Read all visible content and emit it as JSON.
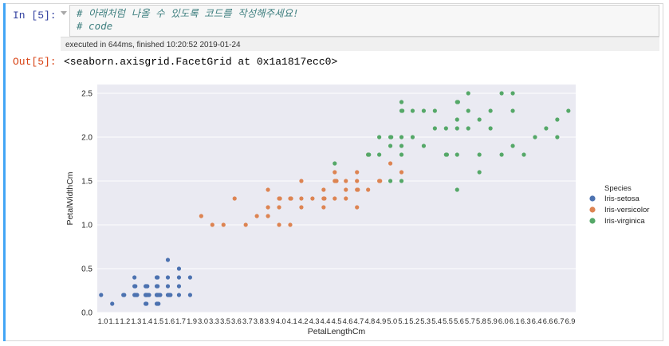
{
  "cell": {
    "in_prompt": "In [5]:",
    "out_prompt": "Out[5]:",
    "code_lines": [
      "# 아래처럼 나올 수 있도록 코드를 작성해주세요!",
      "# code"
    ],
    "exec_info": "executed in 644ms, finished 10:20:52 2019-01-24",
    "output_text": "<seaborn.axisgrid.FacetGrid at 0x1a1817ecc0>"
  },
  "colors": {
    "plot_bg": "#eaeaf2",
    "grid": "#ffffff",
    "accent": "#42a5f5",
    "in_prompt": "#303f9f",
    "out_prompt": "#d84315"
  },
  "chart_data": {
    "type": "scatter",
    "xlabel": "PetalLengthCm",
    "ylabel": "PetalWidthCm",
    "x_categories": [
      "1.0",
      "1.1",
      "1.2",
      "1.3",
      "1.4",
      "1.5",
      "1.6",
      "1.7",
      "1.9",
      "3.0",
      "3.3",
      "3.5",
      "3.6",
      "3.7",
      "3.8",
      "3.9",
      "4.0",
      "4.1",
      "4.2",
      "4.3",
      "4.4",
      "4.5",
      "4.6",
      "4.7",
      "4.8",
      "4.9",
      "5.0",
      "5.1",
      "5.2",
      "5.3",
      "5.4",
      "5.5",
      "5.6",
      "5.7",
      "5.8",
      "5.9",
      "6.0",
      "6.1",
      "6.3",
      "6.4",
      "6.6",
      "6.7",
      "6.9"
    ],
    "yticks": [
      "0.0",
      "0.5",
      "1.0",
      "1.5",
      "2.0",
      "2.5"
    ],
    "ylim": [
      0,
      2.6
    ],
    "grid": true,
    "legend": {
      "title": "Species",
      "placement": "right"
    },
    "series": [
      {
        "name": "Iris-setosa",
        "color": "#4c72b0",
        "points": [
          [
            "1.0",
            0.2
          ],
          [
            "1.1",
            0.1
          ],
          [
            "1.2",
            0.2
          ],
          [
            "1.2",
            0.2
          ],
          [
            "1.3",
            0.2
          ],
          [
            "1.3",
            0.2
          ],
          [
            "1.3",
            0.3
          ],
          [
            "1.3",
            0.4
          ],
          [
            "1.3",
            0.2
          ],
          [
            "1.3",
            0.3
          ],
          [
            "1.3",
            0.2
          ],
          [
            "1.4",
            0.2
          ],
          [
            "1.4",
            0.2
          ],
          [
            "1.4",
            0.2
          ],
          [
            "1.4",
            0.3
          ],
          [
            "1.4",
            0.1
          ],
          [
            "1.4",
            0.2
          ],
          [
            "1.4",
            0.3
          ],
          [
            "1.4",
            0.2
          ],
          [
            "1.4",
            0.1
          ],
          [
            "1.4",
            0.2
          ],
          [
            "1.4",
            0.3
          ],
          [
            "1.4",
            0.2
          ],
          [
            "1.5",
            0.2
          ],
          [
            "1.5",
            0.2
          ],
          [
            "1.5",
            0.1
          ],
          [
            "1.5",
            0.2
          ],
          [
            "1.5",
            0.4
          ],
          [
            "1.5",
            0.3
          ],
          [
            "1.5",
            0.2
          ],
          [
            "1.5",
            0.2
          ],
          [
            "1.5",
            0.1
          ],
          [
            "1.5",
            0.2
          ],
          [
            "1.5",
            0.3
          ],
          [
            "1.5",
            0.1
          ],
          [
            "1.5",
            0.2
          ],
          [
            "1.5",
            0.4
          ],
          [
            "1.6",
            0.2
          ],
          [
            "1.6",
            0.2
          ],
          [
            "1.6",
            0.4
          ],
          [
            "1.6",
            0.2
          ],
          [
            "1.6",
            0.6
          ],
          [
            "1.6",
            0.2
          ],
          [
            "1.6",
            0.3
          ],
          [
            "1.7",
            0.4
          ],
          [
            "1.7",
            0.3
          ],
          [
            "1.7",
            0.2
          ],
          [
            "1.7",
            0.5
          ],
          [
            "1.9",
            0.2
          ],
          [
            "1.9",
            0.4
          ]
        ]
      },
      {
        "name": "Iris-versicolor",
        "color": "#dd8452",
        "points": [
          [
            "3.0",
            1.1
          ],
          [
            "3.3",
            1.0
          ],
          [
            "3.5",
            1.0
          ],
          [
            "3.6",
            1.3
          ],
          [
            "3.7",
            1.0
          ],
          [
            "3.8",
            1.1
          ],
          [
            "3.9",
            1.4
          ],
          [
            "3.9",
            1.1
          ],
          [
            "3.9",
            1.2
          ],
          [
            "4.0",
            1.3
          ],
          [
            "4.0",
            1.0
          ],
          [
            "4.0",
            1.2
          ],
          [
            "4.0",
            1.3
          ],
          [
            "4.1",
            1.0
          ],
          [
            "4.1",
            1.3
          ],
          [
            "4.1",
            1.3
          ],
          [
            "4.2",
            1.3
          ],
          [
            "4.2",
            1.5
          ],
          [
            "4.2",
            1.2
          ],
          [
            "4.3",
            1.3
          ],
          [
            "4.4",
            1.4
          ],
          [
            "4.4",
            1.3
          ],
          [
            "4.4",
            1.2
          ],
          [
            "4.4",
            1.3
          ],
          [
            "4.5",
            1.5
          ],
          [
            "4.5",
            1.3
          ],
          [
            "4.5",
            1.5
          ],
          [
            "4.5",
            1.6
          ],
          [
            "4.5",
            1.5
          ],
          [
            "4.6",
            1.5
          ],
          [
            "4.6",
            1.3
          ],
          [
            "4.6",
            1.4
          ],
          [
            "4.7",
            1.4
          ],
          [
            "4.7",
            1.6
          ],
          [
            "4.7",
            1.2
          ],
          [
            "4.7",
            1.5
          ],
          [
            "4.7",
            1.4
          ],
          [
            "4.8",
            1.8
          ],
          [
            "4.8",
            1.4
          ],
          [
            "4.9",
            1.5
          ],
          [
            "4.9",
            1.5
          ],
          [
            "5.0",
            1.7
          ],
          [
            "5.1",
            1.6
          ]
        ]
      },
      {
        "name": "Iris-virginica",
        "color": "#55a868",
        "points": [
          [
            "4.5",
            1.7
          ],
          [
            "4.8",
            1.8
          ],
          [
            "4.8",
            1.8
          ],
          [
            "4.9",
            1.8
          ],
          [
            "4.9",
            2.0
          ],
          [
            "5.0",
            2.0
          ],
          [
            "5.0",
            1.5
          ],
          [
            "5.0",
            1.9
          ],
          [
            "5.0",
            2.0
          ],
          [
            "5.1",
            2.4
          ],
          [
            "5.1",
            1.9
          ],
          [
            "5.1",
            2.0
          ],
          [
            "5.1",
            1.8
          ],
          [
            "5.1",
            2.3
          ],
          [
            "5.1",
            1.5
          ],
          [
            "5.1",
            2.3
          ],
          [
            "5.2",
            2.3
          ],
          [
            "5.2",
            2.0
          ],
          [
            "5.3",
            1.9
          ],
          [
            "5.3",
            2.3
          ],
          [
            "5.4",
            2.1
          ],
          [
            "5.4",
            2.3
          ],
          [
            "5.5",
            1.8
          ],
          [
            "5.5",
            2.1
          ],
          [
            "5.5",
            1.8
          ],
          [
            "5.6",
            2.4
          ],
          [
            "5.6",
            2.2
          ],
          [
            "5.6",
            1.8
          ],
          [
            "5.6",
            2.4
          ],
          [
            "5.6",
            2.1
          ],
          [
            "5.6",
            1.4
          ],
          [
            "5.7",
            2.5
          ],
          [
            "5.7",
            2.1
          ],
          [
            "5.7",
            2.3
          ],
          [
            "5.8",
            2.2
          ],
          [
            "5.8",
            1.6
          ],
          [
            "5.8",
            1.8
          ],
          [
            "5.9",
            2.3
          ],
          [
            "5.9",
            2.1
          ],
          [
            "6.0",
            2.5
          ],
          [
            "6.0",
            1.8
          ],
          [
            "6.1",
            2.5
          ],
          [
            "6.1",
            1.9
          ],
          [
            "6.1",
            2.3
          ],
          [
            "6.3",
            1.8
          ],
          [
            "6.4",
            2.0
          ],
          [
            "6.6",
            2.1
          ],
          [
            "6.7",
            2.2
          ],
          [
            "6.7",
            2.0
          ],
          [
            "6.9",
            2.3
          ]
        ]
      }
    ]
  }
}
